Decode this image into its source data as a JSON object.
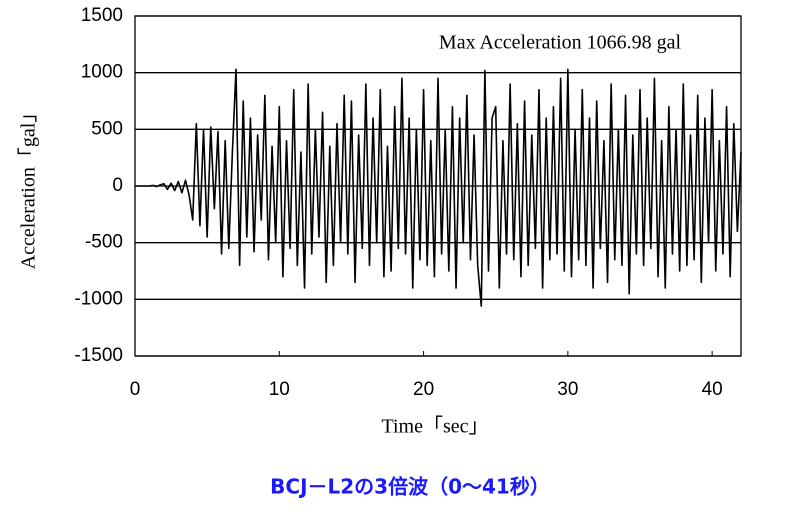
{
  "chart_data": {
    "type": "line",
    "title": "BCJ－L2の3倍波（0～41秒）",
    "annotation": "Max Acceleration  1066.98  gal",
    "x_label": "Time「sec」",
    "y_label": "Acceleration「gal」",
    "xlim": [
      0,
      42
    ],
    "xticks": [
      0,
      10,
      20,
      30,
      40
    ],
    "ylim": [
      -1500,
      1500
    ],
    "yticks": [
      -1500,
      -1000,
      -500,
      0,
      500,
      1000,
      1500
    ],
    "grid": true,
    "series": [
      {
        "color": "#000000",
        "x": [
          0,
          0.25,
          0.5,
          0.75,
          1,
          1.25,
          1.5,
          1.75,
          2,
          2.25,
          2.5,
          2.75,
          3,
          3.25,
          3.5,
          3.75,
          4,
          4.25,
          4.5,
          4.75,
          5,
          5.25,
          5.5,
          5.75,
          6,
          6.25,
          6.5,
          6.75,
          7,
          7.25,
          7.5,
          7.75,
          8,
          8.25,
          8.5,
          8.75,
          9,
          9.25,
          9.5,
          9.75,
          10,
          10.25,
          10.5,
          10.75,
          11,
          11.25,
          11.5,
          11.75,
          12,
          12.25,
          12.5,
          12.75,
          13,
          13.25,
          13.5,
          13.75,
          14,
          14.25,
          14.5,
          14.75,
          15,
          15.25,
          15.5,
          15.75,
          16,
          16.25,
          16.5,
          16.75,
          17,
          17.25,
          17.5,
          17.75,
          18,
          18.25,
          18.5,
          18.75,
          19,
          19.25,
          19.5,
          19.75,
          20,
          20.25,
          20.5,
          20.75,
          21,
          21.25,
          21.5,
          21.75,
          22,
          22.25,
          22.5,
          22.75,
          23,
          23.25,
          23.5,
          23.75,
          24,
          24.25,
          24.5,
          24.75,
          25,
          25.25,
          25.5,
          25.75,
          26,
          26.25,
          26.5,
          26.75,
          27,
          27.25,
          27.5,
          27.75,
          28,
          28.25,
          28.5,
          28.75,
          29,
          29.25,
          29.5,
          29.75,
          30,
          30.25,
          30.5,
          30.75,
          31,
          31.25,
          31.5,
          31.75,
          32,
          32.25,
          32.5,
          32.75,
          33,
          33.25,
          33.5,
          33.75,
          34,
          34.25,
          34.5,
          34.75,
          35,
          35.25,
          35.5,
          35.75,
          36,
          36.25,
          36.5,
          36.75,
          37,
          37.25,
          37.5,
          37.75,
          38,
          38.25,
          38.5,
          38.75,
          39,
          39.25,
          39.5,
          39.75,
          40,
          40.25,
          40.5,
          40.75,
          41,
          41.25,
          41.5,
          41.75,
          42
        ],
        "values": [
          0,
          0,
          0,
          0,
          0,
          5,
          -5,
          10,
          20,
          -30,
          25,
          -40,
          40,
          -60,
          50,
          -80,
          -300,
          550,
          -350,
          500,
          -450,
          520,
          -200,
          480,
          -600,
          400,
          -550,
          300,
          1030,
          -700,
          750,
          -450,
          600,
          -580,
          450,
          -300,
          800,
          -650,
          350,
          -500,
          700,
          -800,
          400,
          -550,
          850,
          -700,
          300,
          -900,
          900,
          -600,
          500,
          -450,
          650,
          -850,
          350,
          -700,
          550,
          -500,
          800,
          -600,
          750,
          -850,
          450,
          -550,
          900,
          -700,
          600,
          -500,
          850,
          -800,
          350,
          -750,
          700,
          -550,
          950,
          -600,
          600,
          -900,
          500,
          -650,
          850,
          -700,
          400,
          -800,
          950,
          -600,
          500,
          -750,
          700,
          -900,
          600,
          -500,
          800,
          -650,
          450,
          -700,
          -1060,
          1020,
          -750,
          600,
          700,
          -900,
          400,
          -600,
          900,
          -650,
          550,
          -800,
          750,
          -700,
          450,
          -550,
          850,
          -900,
          600,
          -650,
          700,
          -600,
          950,
          -750,
          1030,
          -800,
          500,
          -650,
          850,
          -700,
          600,
          -900,
          750,
          -550,
          400,
          -850,
          900,
          -650,
          500,
          -700,
          800,
          -950,
          450,
          -600,
          850,
          -700,
          600,
          -550,
          950,
          -800,
          400,
          -900,
          700,
          -600,
          500,
          -750,
          900,
          -700,
          450,
          -650,
          800,
          -850,
          600,
          -500,
          850,
          -750,
          400,
          -600,
          700,
          -800,
          550,
          -400,
          300
        ]
      }
    ]
  }
}
